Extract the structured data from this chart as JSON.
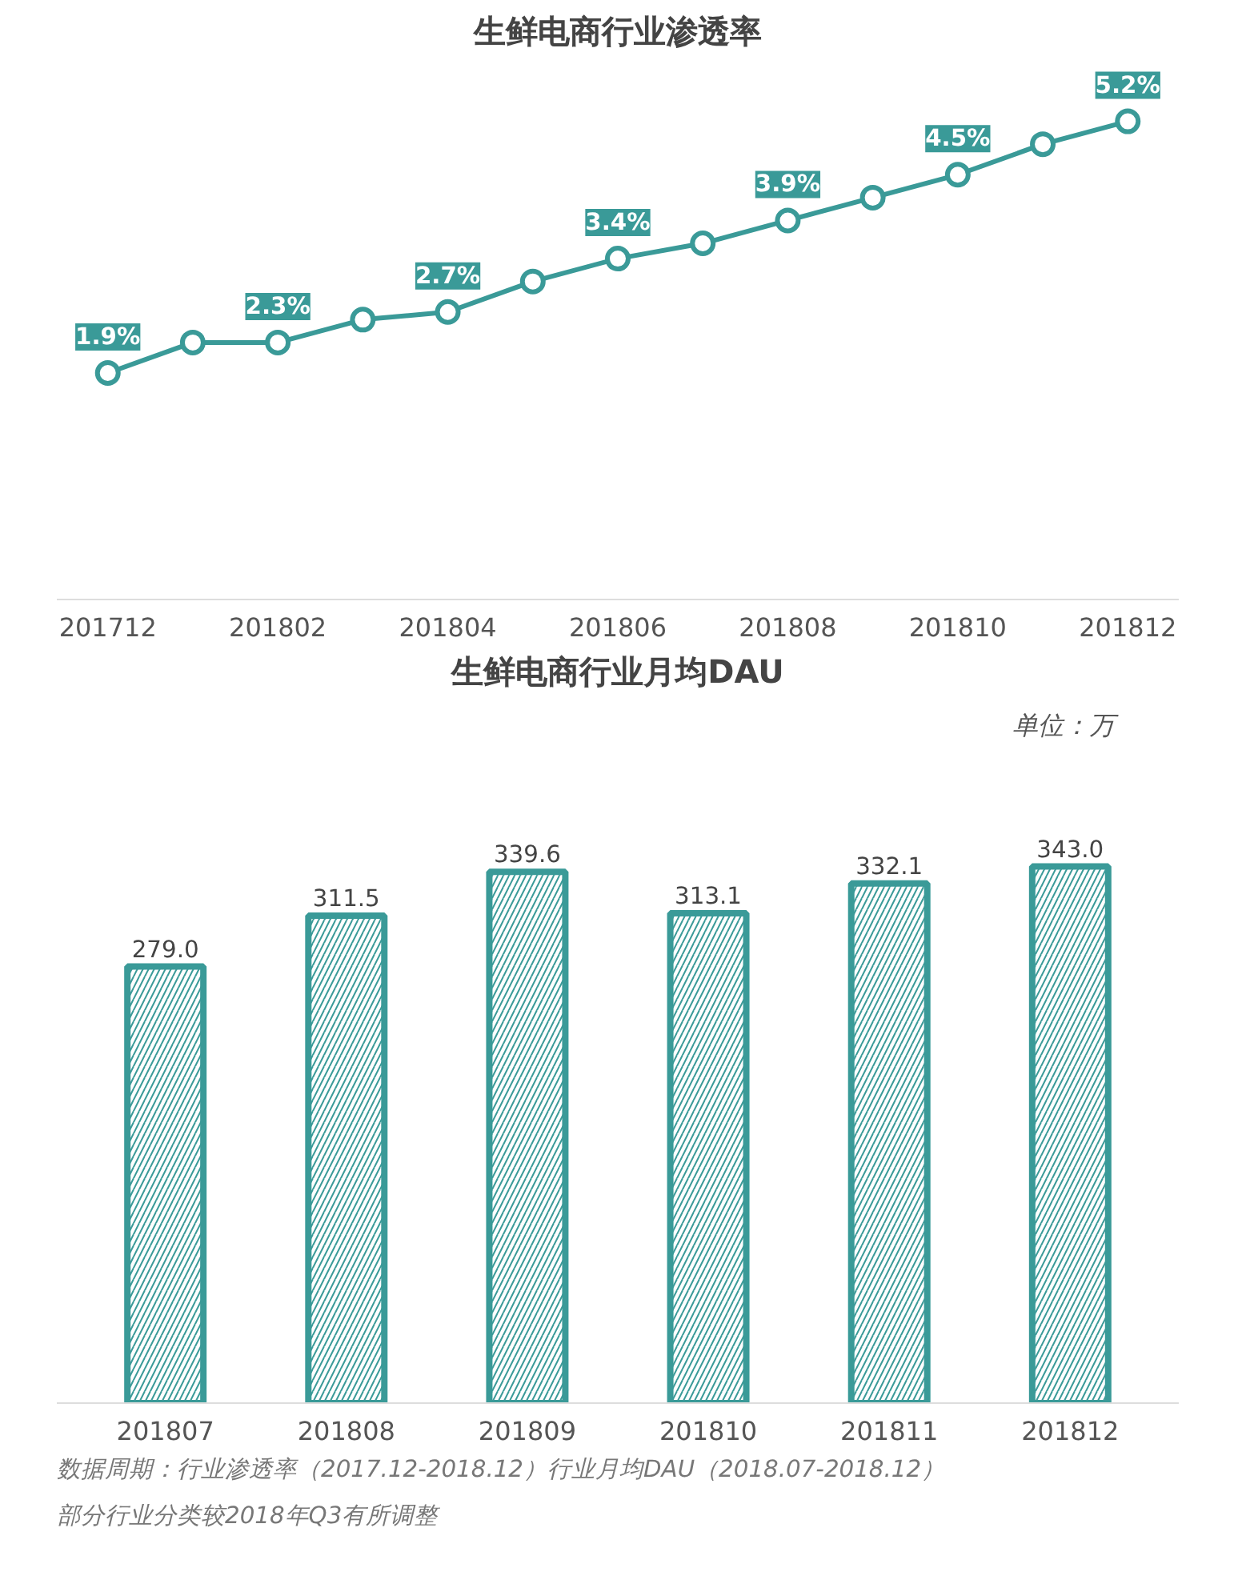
{
  "chart_data": [
    {
      "type": "line",
      "title": "生鲜电商行业渗透率",
      "categories": [
        "201712",
        null,
        "201802",
        null,
        "201804",
        null,
        "201806",
        null,
        "201808",
        null,
        "201810",
        null,
        "201812"
      ],
      "series": [
        {
          "color": "#3a9a98",
          "values": [
            1.9,
            2.3,
            2.3,
            2.6,
            2.7,
            3.1,
            3.4,
            3.6,
            3.9,
            4.2,
            4.5,
            4.9,
            5.2
          ],
          "value_labels": [
            "1.9%",
            null,
            "2.3%",
            null,
            "2.7%",
            null,
            "3.4%",
            null,
            "3.9%",
            null,
            "4.5%",
            null,
            "5.2%"
          ]
        }
      ],
      "marker": "circle",
      "line_style": "solid",
      "grid": false
    },
    {
      "type": "bar",
      "title": "生鲜电商行业月均DAU",
      "categories": [
        "201807",
        "201808",
        "201809",
        "201810",
        "201811",
        "201812"
      ],
      "values": [
        279.0,
        311.5,
        339.6,
        313.1,
        332.1,
        343.0
      ],
      "color": "#3a9a98",
      "value_labels": [
        "279.0",
        "311.5",
        "339.6",
        "313.1",
        "332.1",
        "343.0"
      ],
      "grid": false,
      "annotations": [
        "单位：万",
        "数据周期：行业渗透率（2017.12-2018.12）行业月均DAU（2018.07-2018.12）",
        "部分行业分类较2018年Q3有所调整"
      ]
    }
  ]
}
